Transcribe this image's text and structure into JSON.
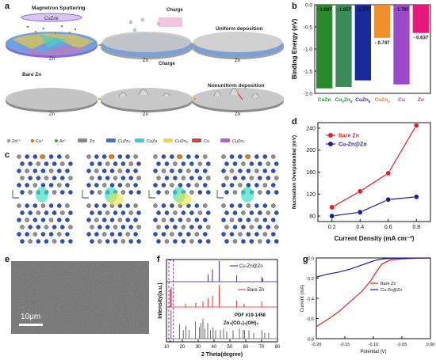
{
  "panel_labels": {
    "a": "a",
    "b": "b",
    "c": "c",
    "d": "d",
    "e": "e",
    "f": "f",
    "g": "g"
  },
  "panel_a": {
    "top_process": "Magnetron Sputtering",
    "top_target": "CuZnx",
    "charge_label_top": "Charge",
    "charge_label_bottom": "Charge",
    "uniform": "Uniform deposition",
    "bare": "Bare Zn",
    "nonuniform": "Nonuniform deposition",
    "zn_labels": [
      "Zn",
      "Zn",
      "Zn",
      "Zn",
      "Zn",
      "Zn"
    ],
    "legend": [
      {
        "label": "Zn²⁺",
        "color": "#9a9a9a",
        "kind": "drop"
      },
      {
        "label": "Cu⁺",
        "color": "#e07820",
        "kind": "drop"
      },
      {
        "label": "Ar⁺",
        "color": "#40b040",
        "kind": "drop"
      },
      {
        "label": "Zn",
        "color": "#888888",
        "kind": "bar"
      },
      {
        "label": "CuZn₂",
        "color": "#4a6fd0",
        "kind": "bar"
      },
      {
        "label": "CuZn",
        "color": "#40c8e0",
        "kind": "bar"
      },
      {
        "label": "CuZn₅",
        "color": "#e8d840",
        "kind": "bar"
      },
      {
        "label": "Cu",
        "color": "#d04040",
        "kind": "bar"
      },
      {
        "label": "CuZn₂",
        "color": "#b060d0",
        "kind": "bar"
      }
    ]
  },
  "panel_e": {
    "scale_text": "10μm"
  },
  "chart_data": [
    {
      "id": "b",
      "type": "bar",
      "ylabel": "Binding Energy (eV)",
      "ylim": [
        0,
        -2.0
      ],
      "yticks": [
        0.0,
        -0.5,
        -1.0,
        -1.5,
        -2.0
      ],
      "ytick_labels": [
        "0.0",
        "-0.5",
        "-1.0",
        "-1.5",
        "-2.0"
      ],
      "categories": [
        "CuZn",
        "Cu5Zn8",
        "CuZn5",
        "CuZn4",
        "Cu",
        "Zn"
      ],
      "category_display": [
        {
          "main": "CuZn",
          "sub": ""
        },
        {
          "main": "Cu",
          "sub": "5",
          "rest": "Zn",
          "sub2": "8"
        },
        {
          "main": "CuZn",
          "sub": "5"
        },
        {
          "main": "CuZn",
          "sub": "4"
        },
        {
          "main": "Cu",
          "sub": ""
        },
        {
          "main": "Zn",
          "sub": ""
        }
      ],
      "category_colors": [
        "#209020",
        "#209020",
        "#1a2a9a",
        "#e87820",
        "#9040c0",
        "#e02080"
      ],
      "values": [
        -1.887,
        -1.857,
        -1.707,
        -0.747,
        -1.797,
        -0.637
      ],
      "value_labels": [
        "- 1.887",
        "- 1.857",
        "- 1.707",
        "- 0.747",
        "- 1.797",
        "- 0.637"
      ],
      "colors": [
        "#2a8a2a",
        "#3a8a5a",
        "#1a2a9a",
        "#f0902a",
        "#9a4ac8",
        "#e6197a"
      ]
    },
    {
      "id": "d",
      "type": "line",
      "xlabel": "Current Density (mA cm⁻²)",
      "ylabel": "Nucleation Overpotential (mV)",
      "xlim": [
        0.1,
        0.9
      ],
      "ylim": [
        70,
        250
      ],
      "xticks": [
        0.2,
        0.4,
        0.6,
        0.8
      ],
      "xtick_labels": [
        "0.2",
        "0.4",
        "0.6",
        "0.8"
      ],
      "yticks": [
        80,
        120,
        160,
        200,
        240
      ],
      "ytick_labels": [
        "80",
        "120",
        "160",
        "200",
        "240"
      ],
      "series": [
        {
          "name": "Bare Zn",
          "color": "#e02020",
          "x": [
            0.2,
            0.4,
            0.6,
            0.8
          ],
          "y": [
            96,
            125,
            158,
            245
          ]
        },
        {
          "name": "Cu-Zn@Zn",
          "color": "#1a1a9a",
          "x": [
            0.2,
            0.4,
            0.6,
            0.8
          ],
          "y": [
            80,
            87,
            110,
            115
          ]
        }
      ]
    },
    {
      "id": "f",
      "type": "line",
      "xlabel": "2 Theta(degree)",
      "ylabel": "Intensity(a.u.)",
      "xlim": [
        10,
        80
      ],
      "xticks": [
        10,
        20,
        30,
        40,
        50,
        60,
        70,
        80
      ],
      "xtick_labels": [
        "10",
        "20",
        "30",
        "40",
        "50",
        "60",
        "70",
        "80"
      ],
      "series": [
        {
          "name": "Cu-Zn@Zn",
          "color": "#1a1aa0",
          "peaks": [
            [
              36.3,
              0.35
            ],
            [
              39.0,
              0.6
            ],
            [
              43.2,
              1.0
            ],
            [
              54.3,
              0.3
            ],
            [
              70.1,
              0.25
            ],
            [
              70.7,
              0.15
            ]
          ]
        },
        {
          "name": "Bare Zn",
          "color": "#e02020",
          "peaks": [
            [
              12.5,
              0.8
            ],
            [
              13.0,
              0.9
            ],
            [
              22.0,
              0.15
            ],
            [
              28.5,
              0.2
            ],
            [
              33.0,
              0.25
            ],
            [
              36.3,
              0.4
            ],
            [
              39.0,
              0.5
            ],
            [
              43.2,
              1.0
            ],
            [
              54.3,
              0.3
            ],
            [
              59.0,
              0.15
            ],
            [
              70.1,
              0.25
            ]
          ]
        },
        {
          "name": "PDF #19-1458",
          "sublabel": "Zn5(CO3)2(OH)6",
          "color": "#555555",
          "peaks": [
            [
              12.9,
              1.0
            ],
            [
              18.2,
              0.5
            ],
            [
              20.6,
              0.3
            ],
            [
              22.2,
              0.45
            ],
            [
              24.3,
              0.3
            ],
            [
              28.3,
              0.6
            ],
            [
              30.8,
              0.4
            ],
            [
              31.8,
              0.55
            ],
            [
              33.0,
              0.7
            ],
            [
              34.3,
              0.35
            ],
            [
              36.0,
              0.55
            ],
            [
              37.8,
              0.3
            ],
            [
              39.4,
              0.4
            ],
            [
              41.0,
              0.3
            ],
            [
              44.0,
              0.3
            ],
            [
              46.0,
              0.35
            ],
            [
              48.0,
              0.25
            ],
            [
              52.0,
              0.3
            ],
            [
              56.0,
              0.35
            ],
            [
              58.4,
              0.3
            ],
            [
              59.3,
              0.3
            ],
            [
              62.0,
              0.3
            ],
            [
              65.0,
              0.2
            ],
            [
              70.2,
              0.3
            ],
            [
              72.0,
              0.2
            ],
            [
              74.5,
              0.2
            ]
          ]
        }
      ],
      "legend_labels": {
        "s1": "Cu-Zn@Zn",
        "s2": "Bare Zn",
        "s3a": "PDF #19-1458",
        "s3b": "Zn₅(CO₃)₂(OH)₆"
      }
    },
    {
      "id": "g",
      "type": "line",
      "xlabel": "Potential (V)",
      "ylabel": "Current (mA)",
      "xlim": [
        -0.2,
        0.0
      ],
      "ylim": [
        -0.8,
        0.0
      ],
      "xticks": [
        -0.2,
        -0.15,
        -0.1,
        -0.05,
        0.0
      ],
      "xtick_labels": [
        "-0.20",
        "-0.15",
        "-0.10",
        "-0.05",
        "0.00"
      ],
      "yticks": [
        0.0,
        -0.2,
        -0.4,
        -0.6,
        -0.8
      ],
      "ytick_labels": [
        "0.0",
        "-0.2",
        "-0.4",
        "-0.6",
        "-0.8"
      ],
      "series": [
        {
          "name": "Bare Zn",
          "color": "#e02020",
          "x": [
            -0.2,
            -0.18,
            -0.16,
            -0.14,
            -0.12,
            -0.105,
            -0.095,
            -0.085,
            -0.07,
            -0.05,
            -0.03,
            0.0
          ],
          "y": [
            -0.68,
            -0.61,
            -0.53,
            -0.43,
            -0.33,
            -0.23,
            -0.14,
            -0.06,
            -0.02,
            -0.01,
            -0.005,
            0.0
          ]
        },
        {
          "name": "Cu-Zn@Zn",
          "color": "#1a1a9a",
          "x": [
            -0.2,
            -0.18,
            -0.16,
            -0.14,
            -0.13,
            -0.12,
            -0.11,
            -0.1,
            -0.09,
            -0.08,
            -0.06,
            -0.04,
            0.0
          ],
          "y": [
            -0.19,
            -0.16,
            -0.14,
            -0.11,
            -0.09,
            -0.07,
            -0.05,
            -0.03,
            -0.015,
            -0.008,
            -0.004,
            -0.002,
            0.0
          ]
        }
      ]
    }
  ]
}
